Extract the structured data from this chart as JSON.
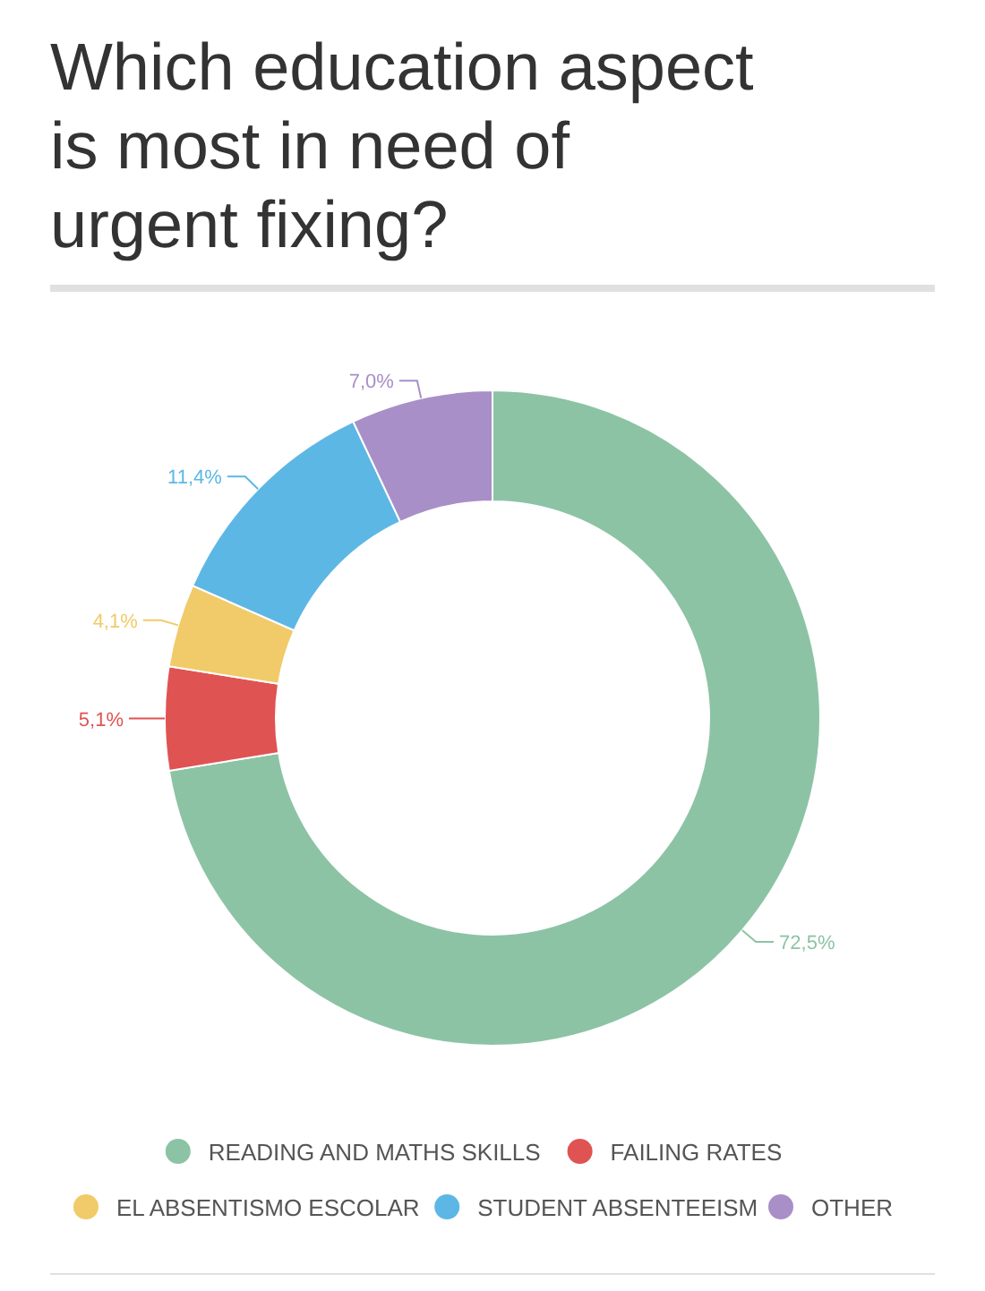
{
  "chart_data": {
    "type": "donut",
    "title": "Which education aspect is most in need of urgent fixing?",
    "categories": [
      "READING AND MATHS SKILLS",
      "FAILING RATES",
      "EL ABSENTISMO ESCOLAR",
      "STUDENT ABSENTEEISM",
      "OTHER"
    ],
    "values": [
      72.5,
      5.1,
      4.1,
      11.4,
      7.0
    ],
    "colors": [
      "#8dc3a5",
      "#e05353",
      "#f1cb69",
      "#5db7e5",
      "#a98fc7"
    ],
    "value_labels": [
      "72,5%",
      "5,1%",
      "4,1%",
      "11,4%",
      "7,0%"
    ],
    "legend": "bottom"
  }
}
